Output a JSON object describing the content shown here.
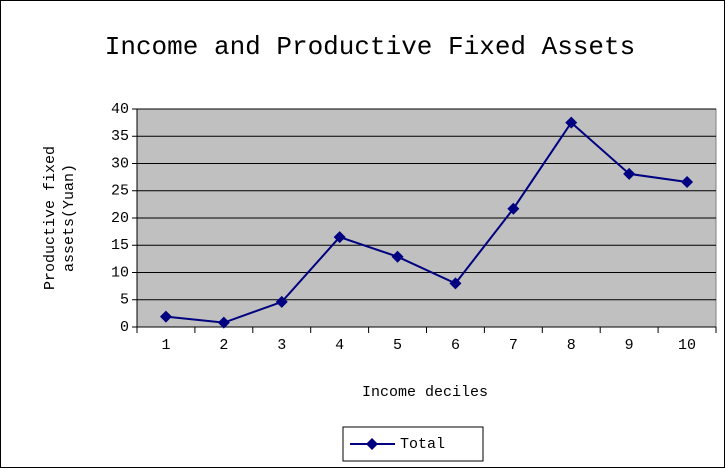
{
  "chart_data": {
    "type": "line",
    "title": "Income and Productive Fixed Assets",
    "x_label": "Income deciles",
    "y_label_lines": [
      "Productive fixed",
      "assets(Yuan)"
    ],
    "categories": [
      "1",
      "2",
      "3",
      "4",
      "5",
      "6",
      "7",
      "8",
      "9",
      "10"
    ],
    "series": [
      {
        "name": "Total",
        "color": "#000080",
        "values": [
          1.9,
          0.8,
          4.6,
          16.5,
          12.9,
          8.0,
          21.7,
          37.5,
          28.1,
          26.6
        ]
      }
    ],
    "ylim": [
      0,
      40
    ],
    "yticks": [
      0,
      5,
      10,
      15,
      20,
      25,
      30,
      35,
      40
    ],
    "grid": true,
    "plot_background": "#c0c0c0",
    "legend": "bottom"
  }
}
